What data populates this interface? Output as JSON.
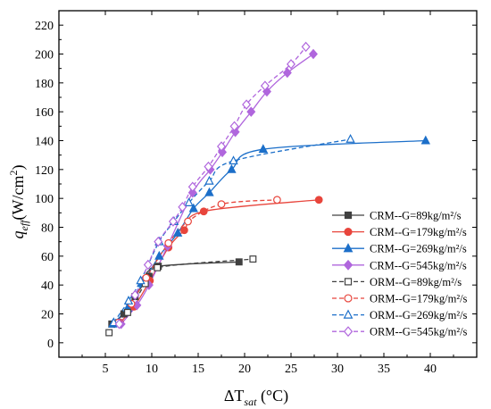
{
  "chart_data": {
    "type": "scatter",
    "xlabel": "ΔT_sat (°C)",
    "ylabel": "q_eff (W/cm²)",
    "xlim": [
      0,
      45
    ],
    "ylim": [
      -10,
      230
    ],
    "x_ticks": [
      5,
      10,
      15,
      20,
      25,
      30,
      35,
      40
    ],
    "y_ticks": [
      0,
      20,
      40,
      60,
      80,
      100,
      120,
      140,
      160,
      180,
      200,
      220
    ],
    "grid": false,
    "legend_position": "right-center",
    "series": [
      {
        "name": "CRM--G=89kg/m²/s",
        "color": "#404040",
        "marker": "square",
        "filled": true,
        "line": "solid",
        "x": [
          5.7,
          7.0,
          8.2,
          9.7,
          10.7,
          19.4
        ],
        "y": [
          13,
          20,
          32,
          46,
          53,
          56
        ]
      },
      {
        "name": "CRM--G=179kg/m²/s",
        "color": "#e8453c",
        "marker": "circle",
        "filled": true,
        "line": "solid",
        "x": [
          6.6,
          8.1,
          9.8,
          11.8,
          13.5,
          15.6,
          28.0
        ],
        "y": [
          14,
          25,
          43,
          66,
          78,
          91,
          99
        ]
      },
      {
        "name": "CRM--G=269kg/m²/s",
        "color": "#1c6fc9",
        "marker": "triangle",
        "filled": true,
        "line": "solid",
        "x": [
          5.8,
          7.4,
          9.0,
          10.8,
          12.8,
          14.5,
          16.2,
          18.6,
          22.0,
          39.5
        ],
        "y": [
          13,
          24,
          41,
          60,
          76,
          93,
          104,
          120,
          134,
          140
        ]
      },
      {
        "name": "CRM--G=545kg/m²/s",
        "color": "#b066dd",
        "marker": "diamond",
        "filled": true,
        "line": "solid",
        "x": [
          6.7,
          8.4,
          9.7,
          11.7,
          14.4,
          16.3,
          17.6,
          19.0,
          20.7,
          22.4,
          24.6,
          27.4
        ],
        "y": [
          13,
          26,
          40,
          67,
          104,
          120,
          132,
          146,
          160,
          174,
          187,
          200
        ]
      },
      {
        "name": "ORM--G=89kg/m²/s",
        "color": "#404040",
        "marker": "square",
        "filled": false,
        "line": "dashed",
        "x": [
          5.4,
          7.4,
          9.3,
          10.6,
          20.9
        ],
        "y": [
          7,
          21,
          41,
          52,
          58
        ]
      },
      {
        "name": "ORM--G=179kg/m²/s",
        "color": "#e8453c",
        "marker": "circle",
        "filled": false,
        "line": "dashed",
        "x": [
          6.4,
          7.8,
          9.4,
          11.8,
          13.9,
          17.5,
          23.5
        ],
        "y": [
          14,
          27,
          45,
          69,
          84,
          96,
          99
        ]
      },
      {
        "name": "ORM--G=269kg/m²/s",
        "color": "#1c6fc9",
        "marker": "triangle",
        "filled": false,
        "line": "dashed",
        "x": [
          5.9,
          7.5,
          8.8,
          10.8,
          12.4,
          14.0,
          16.2,
          18.8,
          31.4
        ],
        "y": [
          14,
          29,
          43,
          70,
          84,
          97,
          112,
          126,
          141
        ]
      },
      {
        "name": "ORM--G=545kg/m²/s",
        "color": "#b066dd",
        "marker": "diamond",
        "filled": false,
        "line": "dashed",
        "x": [
          6.5,
          8.2,
          9.6,
          10.7,
          12.3,
          13.3,
          14.4,
          16.1,
          17.5,
          18.9,
          20.2,
          22.2,
          25.0,
          26.6
        ],
        "y": [
          13,
          33,
          54,
          70,
          84,
          94,
          108,
          122,
          136,
          150,
          165,
          178,
          193,
          205
        ]
      }
    ]
  }
}
